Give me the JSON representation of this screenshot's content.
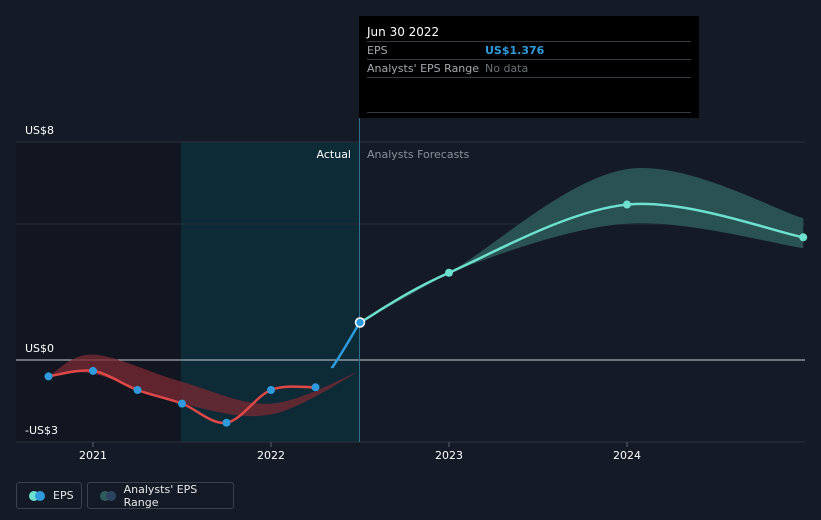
{
  "tooltip": {
    "date": "Jun 30 2022",
    "eps_label": "EPS",
    "eps_value": "US$1.376",
    "range_label": "Analysts' EPS Range",
    "range_value": "No data"
  },
  "labels": {
    "actual": "Actual",
    "forecast": "Analysts Forecasts"
  },
  "legend": {
    "eps": "EPS",
    "range": "Analysts' EPS Range"
  },
  "colors": {
    "background": "#151b26",
    "actual_shade": "#0d2a37",
    "eps_negative": "#e04848",
    "eps_actual": "#2e9bdc",
    "eps_forecast": "#6de0cf",
    "range_forecast": "#2e5c5c",
    "range_past_red": "#7a2a33",
    "range_past_blue": "#2a4460"
  },
  "chart_data": {
    "type": "line",
    "ylim": [
      -3,
      8
    ],
    "y_ticks": [
      {
        "value": 8,
        "label": "US$8"
      },
      {
        "value": 0,
        "label": "US$0"
      },
      {
        "value": -3,
        "label": "-US$3"
      }
    ],
    "x_ticks": [
      {
        "value": 2021.0,
        "label": "2021"
      },
      {
        "value": 2022.0,
        "label": "2022"
      },
      {
        "value": 2023.0,
        "label": "2023"
      },
      {
        "value": 2024.0,
        "label": "2024"
      }
    ],
    "xlim": [
      2020.58,
      2024.99
    ],
    "actual_divider": 2022.5,
    "shade_start": 2021.5,
    "eps_actual": [
      {
        "x": 2020.75,
        "y": -0.6
      },
      {
        "x": 2021.0,
        "y": -0.4
      },
      {
        "x": 2021.25,
        "y": -1.1
      },
      {
        "x": 2021.5,
        "y": -1.6
      },
      {
        "x": 2021.75,
        "y": -2.3
      },
      {
        "x": 2022.0,
        "y": -1.1
      },
      {
        "x": 2022.25,
        "y": -1.0
      },
      {
        "x": 2022.5,
        "y": 1.376
      }
    ],
    "eps_forecast": [
      {
        "x": 2022.5,
        "y": 1.376
      },
      {
        "x": 2023.0,
        "y": 3.2
      },
      {
        "x": 2024.0,
        "y": 5.7
      },
      {
        "x": 2024.99,
        "y": 4.5
      }
    ],
    "range_forecast": [
      {
        "x": 2022.5,
        "low": 1.376,
        "high": 1.376
      },
      {
        "x": 2023.0,
        "low": 3.2,
        "high": 3.2
      },
      {
        "x": 2024.0,
        "low": 5.0,
        "high": 7.0
      },
      {
        "x": 2024.99,
        "low": 4.1,
        "high": 5.2
      }
    ],
    "range_past": [
      {
        "x": 2020.75,
        "low": -0.6,
        "high": -0.6
      },
      {
        "x": 2021.0,
        "low": -0.5,
        "high": 0.2
      },
      {
        "x": 2021.5,
        "low": -1.6,
        "high": -0.8
      },
      {
        "x": 2022.0,
        "low": -2.0,
        "high": -1.6
      },
      {
        "x": 2022.5,
        "low": -0.4,
        "high": -0.4
      }
    ]
  }
}
